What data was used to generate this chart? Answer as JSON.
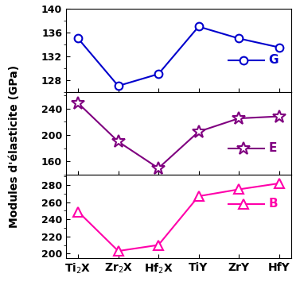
{
  "x_labels": [
    "Ti$_2$X",
    "Zr$_2$X",
    "Hf$_2$X",
    "TiY",
    "ZrY",
    "HfY"
  ],
  "G_values": [
    135.0,
    127.0,
    129.0,
    137.0,
    135.0,
    133.5
  ],
  "E_values": [
    248.0,
    190.0,
    150.0,
    205.0,
    225.0,
    228.0
  ],
  "B_values": [
    249.0,
    203.0,
    210.0,
    267.0,
    275.0,
    282.0
  ],
  "G_color": "#0000CD",
  "E_color": "#800080",
  "B_color": "#FF00AA",
  "G_ylim": [
    126,
    140
  ],
  "G_yticks": [
    128,
    132,
    136,
    140
  ],
  "E_ylim": [
    140,
    265
  ],
  "E_yticks": [
    160,
    200,
    240
  ],
  "B_ylim": [
    195,
    292
  ],
  "B_yticks": [
    200,
    220,
    240,
    260,
    280
  ],
  "ylabel": "Modules d'élasticite (GPa)",
  "G_label": "G",
  "E_label": "E",
  "B_label": "B",
  "background_color": "#ffffff"
}
